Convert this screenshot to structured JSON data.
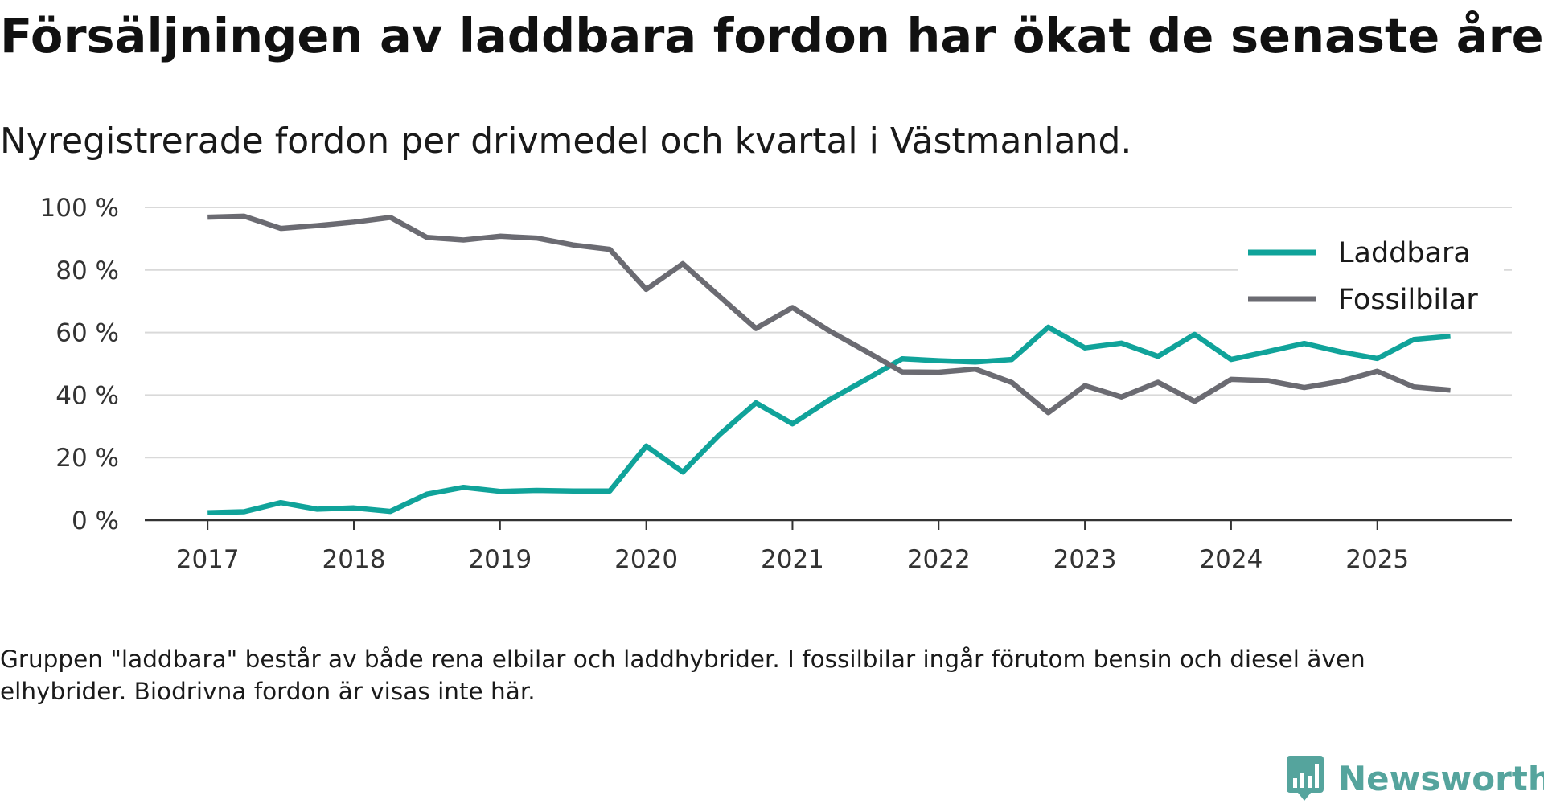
{
  "title": "Försäljningen av laddbara fordon har ökat de senaste åren",
  "subtitle": "Nyregistrerade fordon per drivmedel och kvartal i Västmanland.",
  "note": "Gruppen \"laddbara\" består av både rena elbilar och laddhybrider. I fossilbilar ingår förutom bensin och diesel även elhybrider. Biodrivna fordon är visas inte här.",
  "brand": {
    "name": "Newsworthy"
  },
  "colors": {
    "laddbara": "#10a39a",
    "fossil": "#6b6b72",
    "grid": "#d9d9d9",
    "axis": "#333333",
    "brand": "#55a49d"
  },
  "chart_data": {
    "type": "line",
    "title": "Försäljningen av laddbara fordon har ökat de senaste åren",
    "xlabel": "",
    "ylabel": "",
    "ylim": [
      0,
      100
    ],
    "yticks": [
      0,
      20,
      40,
      60,
      80,
      100
    ],
    "ytick_labels": [
      "0 %",
      "20 %",
      "40 %",
      "60 %",
      "80 %",
      "100 %"
    ],
    "xlim": [
      2017,
      2025.75
    ],
    "xticks": [
      2017,
      2018,
      2019,
      2020,
      2021,
      2022,
      2023,
      2024,
      2025
    ],
    "xtick_labels": [
      "2017",
      "2018",
      "2019",
      "2020",
      "2021",
      "2022",
      "2023",
      "2024",
      "2025"
    ],
    "grid": true,
    "legend": "top-right",
    "x": [
      2017,
      2017.25,
      2017.5,
      2017.75,
      2018,
      2018.25,
      2018.5,
      2018.75,
      2019,
      2019.25,
      2019.5,
      2019.75,
      2020,
      2020.25,
      2020.5,
      2020.75,
      2021,
      2021.25,
      2021.5,
      2021.75,
      2022,
      2022.25,
      2022.5,
      2022.75,
      2023,
      2023.25,
      2023.5,
      2023.75,
      2024,
      2024.25,
      2024.5,
      2024.75,
      2025,
      2025.25,
      2025.5
    ],
    "series": [
      {
        "name": "Laddbara",
        "color": "#10a39a",
        "values": [
          2.4,
          2.7,
          5.6,
          3.5,
          3.9,
          2.8,
          8.3,
          10.5,
          9.2,
          9.5,
          9.3,
          9.3,
          23.7,
          15.4,
          27.3,
          37.5,
          30.8,
          38.4,
          44.9,
          51.6,
          51.0,
          50.6,
          51.4,
          61.7,
          55.1,
          56.6,
          52.4,
          59.4,
          51.4,
          53.9,
          56.5,
          53.8,
          51.7,
          57.8,
          58.8
        ]
      },
      {
        "name": "Fossilbilar",
        "color": "#6b6b72",
        "values": [
          96.9,
          97.2,
          93.3,
          94.2,
          95.3,
          96.8,
          90.4,
          89.6,
          90.8,
          90.2,
          88.0,
          86.6,
          73.8,
          82.0,
          71.6,
          61.3,
          68.0,
          60.6,
          54.1,
          47.4,
          47.3,
          48.3,
          44.0,
          34.4,
          43.0,
          39.4,
          44.1,
          38.0,
          45.0,
          44.6,
          42.4,
          44.4,
          47.6,
          42.6,
          41.6
        ]
      }
    ]
  }
}
